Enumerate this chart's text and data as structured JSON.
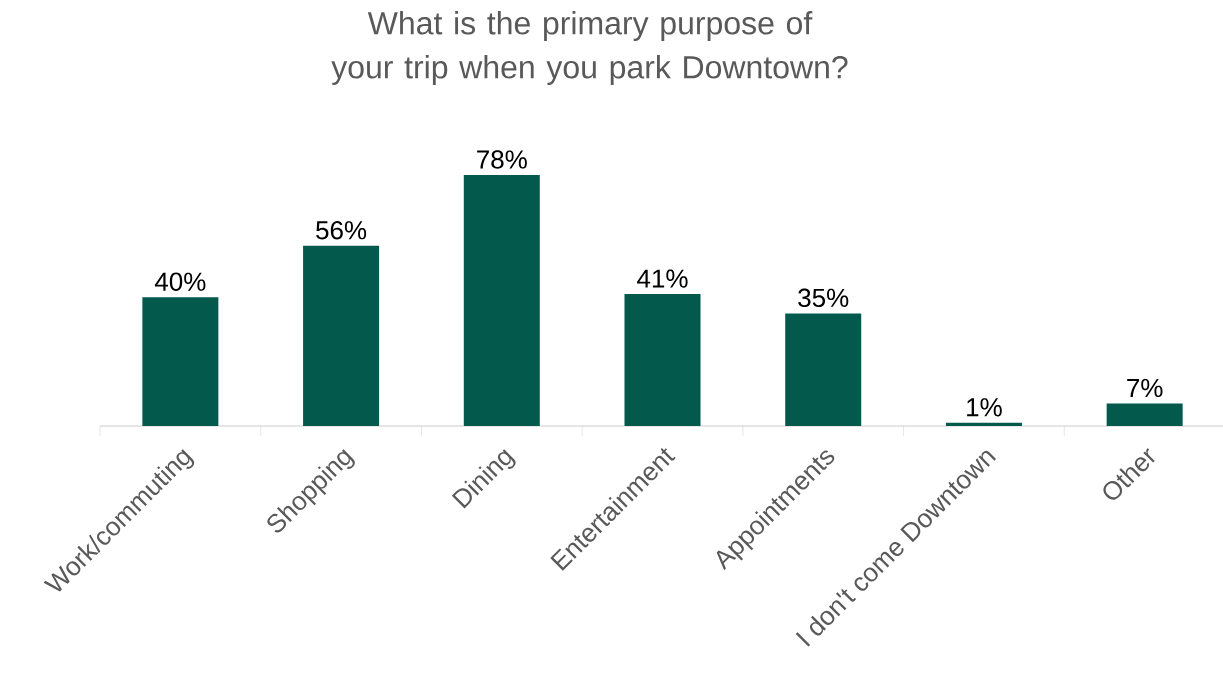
{
  "chart_data": {
    "type": "bar",
    "title": "What is the primary purpose of your trip when you park Downtown?",
    "categories": [
      "Work/commuting",
      "Shopping",
      "Dining",
      "Entertainment",
      "Appointments",
      "I don't come Downtown",
      "Other"
    ],
    "values": [
      40,
      56,
      78,
      41,
      35,
      1,
      7
    ],
    "value_labels": [
      "40%",
      "56%",
      "78%",
      "41%",
      "35%",
      "1%",
      "7%"
    ],
    "color": "#03594c"
  }
}
